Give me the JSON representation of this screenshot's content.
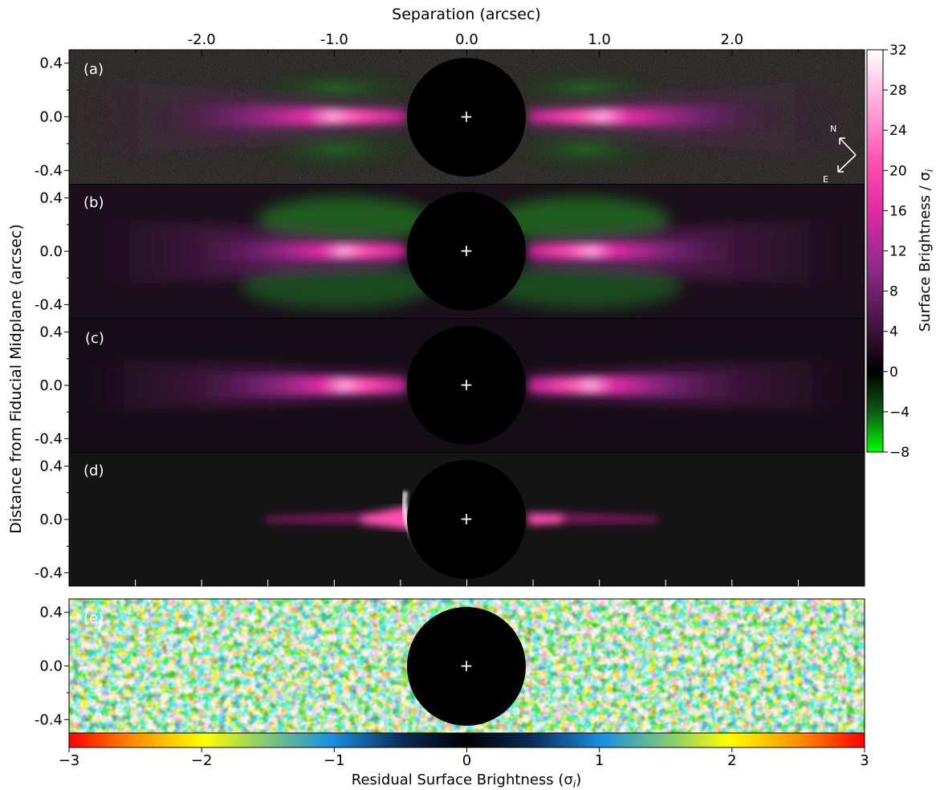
{
  "figure": {
    "top_axis_label": "Separation (arcsec)",
    "left_axis_label": "Distance from Fiducial Midplane (arcsec)",
    "right_colorbar_label": "Surface Brightness / σ",
    "right_colorbar_label_sub": "i",
    "bottom_colorbar_label": "Residual Surface Brightness (σ",
    "bottom_colorbar_label_sub": "i",
    "bottom_colorbar_label_close": ")",
    "compass": {
      "north": "N",
      "east": "E"
    },
    "center_marker": "+"
  },
  "chart_data": {
    "type": "heatmap",
    "panels": [
      {
        "label": "(a)",
        "kind": "observed",
        "colormap": "sb"
      },
      {
        "label": "(b)",
        "kind": "model",
        "colormap": "sb"
      },
      {
        "label": "(c)",
        "kind": "model",
        "colormap": "sb"
      },
      {
        "label": "(d)",
        "kind": "model",
        "colormap": "sb"
      },
      {
        "label": "(e)",
        "kind": "residual",
        "colormap": "residual"
      }
    ],
    "x_axis": {
      "label": "Separation (arcsec)",
      "position": "top",
      "ticks": [
        -2.0,
        -1.0,
        0.0,
        1.0,
        2.0
      ],
      "tick_labels": [
        "-2.0",
        "-1.0",
        "0.0",
        "1.0",
        "2.0"
      ],
      "range": [
        -3.0,
        3.0
      ]
    },
    "y_axis": {
      "label": "Distance from Fiducial Midplane (arcsec)",
      "ticks": [
        0.4,
        0.0,
        -0.4
      ],
      "tick_labels": [
        "0.4",
        "0.0",
        "-0.4"
      ],
      "range": [
        -0.5,
        0.5
      ]
    },
    "mask_radius_arcsec": 0.45,
    "colorbar_sb": {
      "label": "Surface Brightness / σi",
      "range": [
        -8,
        32
      ],
      "ticks": [
        32,
        28,
        24,
        20,
        16,
        12,
        8,
        4,
        0,
        -4,
        -8
      ],
      "tick_labels": [
        "32",
        "28",
        "24",
        "20",
        "16",
        "12",
        "8",
        "4",
        "0",
        "−4",
        "−8"
      ],
      "colors": [
        "#00ff00",
        "#0f4a14",
        "#000000",
        "#3a1238",
        "#8a2a86",
        "#d6249e",
        "#ff3fa8",
        "#ff9ed8",
        "#ffffff"
      ]
    },
    "colorbar_residual": {
      "label": "Residual Surface Brightness (σi)",
      "range": [
        -3,
        3
      ],
      "ticks": [
        -3,
        -2,
        -1,
        0,
        1,
        2,
        3
      ],
      "tick_labels": [
        "−3",
        "−2",
        "−1",
        "0",
        "1",
        "2",
        "3"
      ],
      "colors": [
        "#ff0000",
        "#ff9900",
        "#ffff00",
        "#7dc87a",
        "#1a8fe0",
        "#0b2a55",
        "#000000",
        "#0b2a55",
        "#1a8fe0",
        "#7dc87a",
        "#ffff00",
        "#ff9900",
        "#ff0000"
      ]
    }
  }
}
